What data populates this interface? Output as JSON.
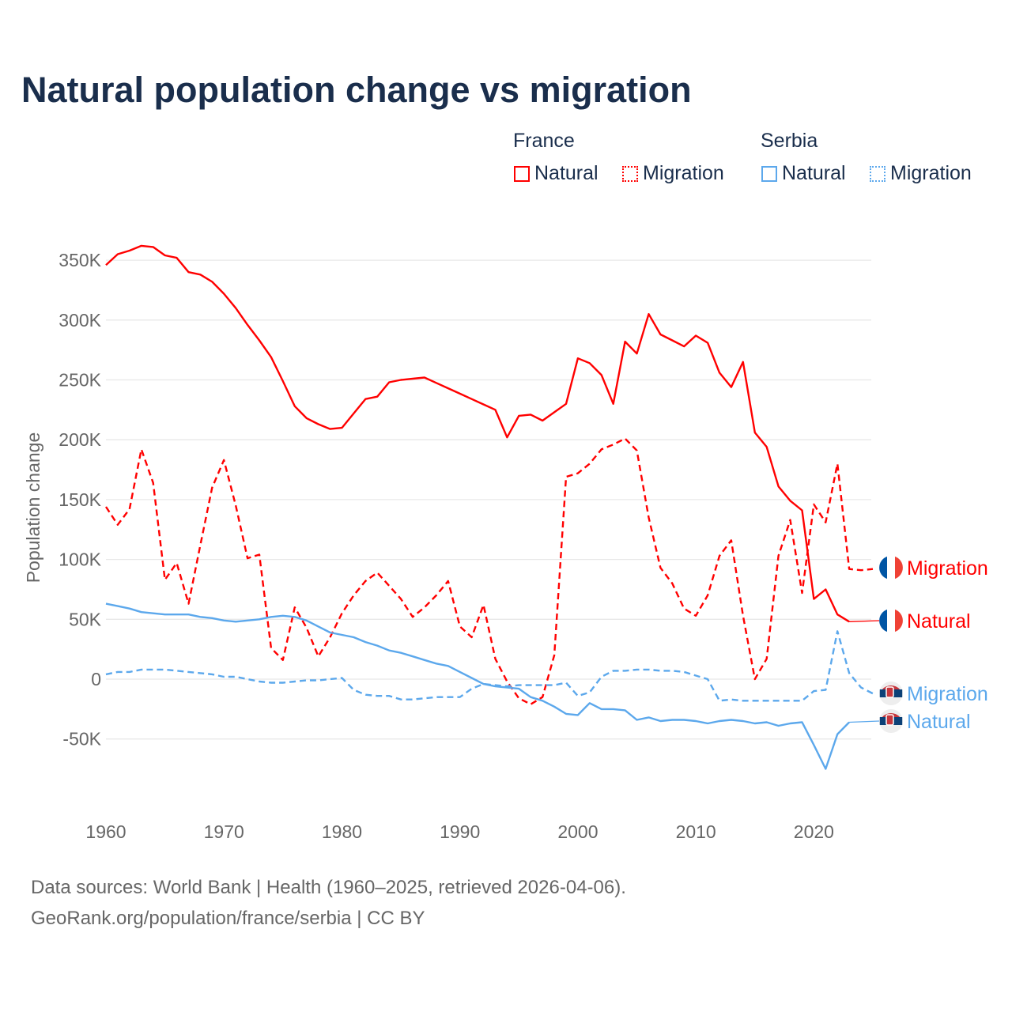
{
  "chart_data": {
    "type": "line",
    "title": "Natural population change vs migration",
    "ylabel": "Population change",
    "xlabel": "",
    "ylim": [
      -95000,
      370000
    ],
    "xlim": [
      1960,
      2025
    ],
    "x_ticks": [
      "1960",
      "1970",
      "1980",
      "1990",
      "2000",
      "2010",
      "2020"
    ],
    "y_ticks": [
      {
        "v": 350000,
        "l": "350K"
      },
      {
        "v": 300000,
        "l": "300K"
      },
      {
        "v": 250000,
        "l": "250K"
      },
      {
        "v": 200000,
        "l": "200K"
      },
      {
        "v": 150000,
        "l": "150K"
      },
      {
        "v": 100000,
        "l": "100K"
      },
      {
        "v": 50000,
        "l": "50K"
      },
      {
        "v": 0,
        "l": "0"
      },
      {
        "v": -50000,
        "l": "-50K"
      }
    ],
    "grid": true,
    "legend": {
      "placement": "top-right",
      "groups": [
        {
          "name": "France",
          "items": [
            "Natural",
            "Migration"
          ]
        },
        {
          "name": "Serbia",
          "items": [
            "Natural",
            "Migration"
          ]
        }
      ]
    },
    "x_start": 1960,
    "series": [
      {
        "name": "France Natural",
        "country": "France",
        "kind": "Natural",
        "color": "#ff0000",
        "dash": false,
        "end_label": "Natural",
        "values": [
          346,
          355,
          358,
          362,
          361,
          354,
          352,
          340,
          338,
          332,
          322,
          310,
          296,
          283,
          269,
          249,
          228,
          218,
          213,
          209,
          210,
          222,
          234,
          236,
          248,
          250,
          251,
          252,
          247.5,
          243,
          238.5,
          234,
          229.5,
          225,
          202,
          220,
          221,
          216,
          223,
          230,
          268,
          264,
          254,
          230,
          282,
          272,
          305,
          288,
          283,
          278,
          287,
          281,
          256,
          244,
          265,
          206,
          194,
          161,
          149,
          141,
          67,
          75,
          54,
          48,
          null,
          null
        ]
      },
      {
        "name": "France Migration",
        "country": "France",
        "kind": "Migration",
        "color": "#ff0000",
        "dash": true,
        "end_label": "Migration",
        "values": [
          144,
          129,
          142,
          192,
          164,
          83,
          97,
          63,
          112,
          160,
          183,
          145,
          101,
          104,
          26,
          16,
          60,
          43,
          19,
          35,
          55,
          70,
          82,
          89,
          78,
          67,
          52,
          60,
          70,
          82,
          44,
          35,
          62,
          17,
          -2,
          -16,
          -21,
          -15,
          20,
          169,
          172,
          180,
          192,
          196,
          201,
          191,
          135,
          93,
          80,
          59,
          53,
          70,
          103,
          116,
          53,
          0,
          17,
          103,
          133,
          72,
          146,
          131,
          180,
          92,
          91,
          92
        ]
      },
      {
        "name": "Serbia Natural",
        "country": "Serbia",
        "kind": "Natural",
        "color": "#5ca8ec",
        "dash": false,
        "end_label": "Natural",
        "values": [
          63,
          61,
          59,
          56,
          55,
          54,
          54,
          54,
          52,
          51,
          49,
          48,
          49,
          50,
          52,
          53,
          52,
          49,
          44,
          39,
          37,
          35,
          31,
          28,
          24,
          22,
          19,
          16,
          13,
          11,
          6,
          1,
          -4,
          -6,
          -7,
          -8,
          -15,
          -18,
          -23,
          -29,
          -30,
          -20,
          -25,
          -25,
          -26,
          -34,
          -32,
          -35,
          -34,
          -34,
          -35,
          -37,
          -35,
          -34,
          -35,
          -37,
          -36,
          -39,
          -37,
          -36,
          -55,
          -75,
          -46,
          -36,
          null,
          null
        ]
      },
      {
        "name": "Serbia Migration",
        "country": "Serbia",
        "kind": "Migration",
        "color": "#5ca8ec",
        "dash": true,
        "end_label": "Migration",
        "values": [
          4,
          6,
          6,
          8,
          8,
          8,
          7,
          6,
          5,
          4,
          2,
          2,
          0,
          -2,
          -3,
          -3,
          -2,
          -1,
          -1,
          0,
          1,
          -9,
          -13,
          -14,
          -14,
          -17,
          -17,
          -16,
          -15,
          -15,
          -15,
          -8,
          -4,
          -5,
          -6,
          -5,
          -5,
          -5,
          -5,
          -3,
          -14,
          -11,
          2,
          7,
          7,
          8,
          8,
          7,
          7,
          6,
          3,
          0,
          -18,
          -17,
          -18,
          -18,
          -18,
          -18,
          -18,
          -18,
          -10,
          -9,
          40,
          5,
          -7,
          -12
        ]
      }
    ],
    "values_unit": "thousands"
  },
  "legend_labels": {
    "france": "France",
    "serbia": "Serbia",
    "natural": "Natural",
    "migration": "Migration"
  },
  "source": {
    "line1": "Data sources: World Bank | Health (1960–2025, retrieved 2026-04-06).",
    "line2": "GeoRank.org/population/france/serbia | CC BY"
  },
  "colors": {
    "france": "#ff0000",
    "serbia": "#5ca8ec",
    "title": "#1a2e4c"
  }
}
